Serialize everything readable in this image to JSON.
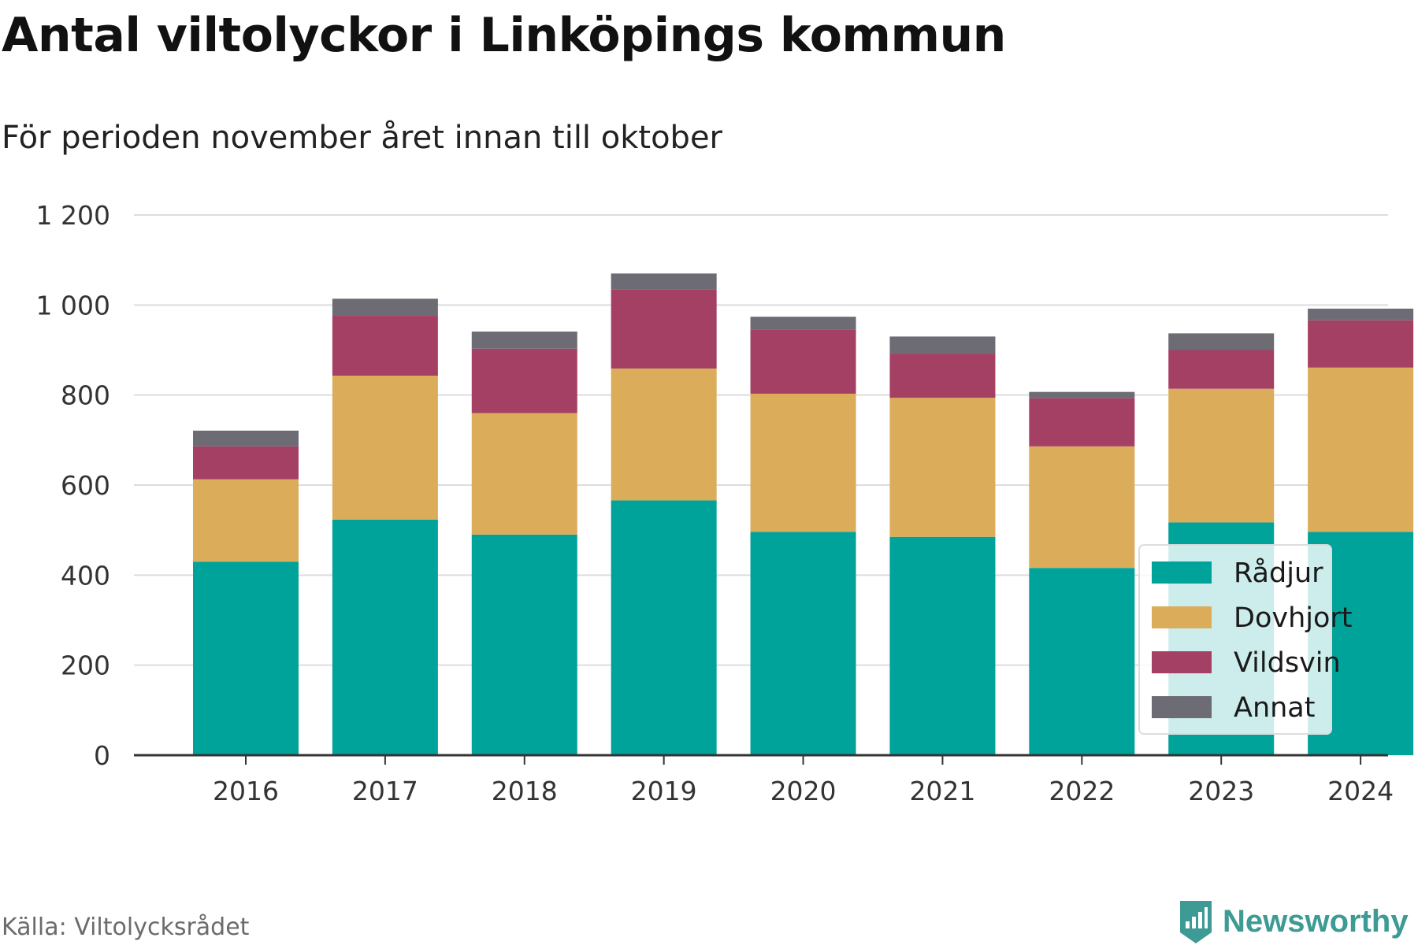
{
  "header": {
    "title": "Antal viltolyckor i Linköpings kommun",
    "subtitle": "För perioden november året innan till oktober"
  },
  "footer": {
    "source": "Källa: Viltolycksrådet",
    "brand": "Newsworthy",
    "brand_color": "#3d9a94"
  },
  "chart_data": {
    "type": "bar",
    "stacked": true,
    "categories": [
      "2016",
      "2017",
      "2018",
      "2019",
      "2020",
      "2021",
      "2022",
      "2023",
      "2024"
    ],
    "series": [
      {
        "name": "Rådjur",
        "color": "#00a39a",
        "values": [
          430,
          523,
          490,
          566,
          496,
          485,
          416,
          517,
          496
        ]
      },
      {
        "name": "Dovhjort",
        "color": "#dbac5a",
        "values": [
          183,
          320,
          270,
          293,
          307,
          309,
          270,
          297,
          365
        ]
      },
      {
        "name": "Vildsvin",
        "color": "#a54065",
        "values": [
          73,
          133,
          143,
          176,
          143,
          98,
          107,
          86,
          105
        ]
      },
      {
        "name": "Annat",
        "color": "#6d6b73",
        "values": [
          35,
          38,
          38,
          35,
          28,
          38,
          14,
          37,
          26
        ]
      }
    ],
    "ylim": [
      0,
      1200
    ],
    "yticks": [
      0,
      200,
      400,
      600,
      800,
      1000,
      1200
    ],
    "ytick_labels": [
      "0",
      "200",
      "400",
      "600",
      "800",
      "1 000",
      "1 200"
    ],
    "xlabel": "",
    "ylabel": "",
    "grid": true,
    "legend": "bottom-right"
  }
}
